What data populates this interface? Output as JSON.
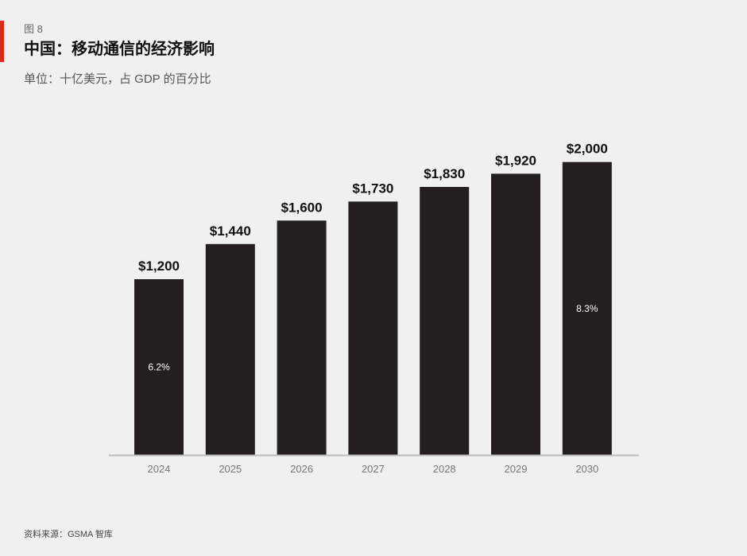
{
  "figure_label": "图 8",
  "title": "中国：移动通信的经济影响",
  "subtitle": "单位：十亿美元，占 GDP 的百分比",
  "source": "资料来源：GSMA 智库",
  "colors": {
    "accent": "#d52b1e",
    "bar": "#231f20",
    "background": "#f0f0f0"
  },
  "chart_data": {
    "type": "bar",
    "title": "中国：移动通信的经济影响",
    "subtitle": "单位：十亿美元，占 GDP 的百分比",
    "xlabel": "",
    "ylabel": "",
    "categories": [
      "2024",
      "2025",
      "2026",
      "2027",
      "2028",
      "2029",
      "2030"
    ],
    "values": [
      1200,
      1440,
      1600,
      1730,
      1830,
      1920,
      2000
    ],
    "value_labels": [
      "$1,200",
      "$1,440",
      "$1,600",
      "$1,730",
      "$1,830",
      "$1,920",
      "$2,000"
    ],
    "gdp_share_labels": [
      "6.2%",
      "",
      "",
      "",
      "",
      "",
      "8.3%"
    ],
    "ylim": [
      0,
      2400
    ],
    "grid": false,
    "legend": "none"
  }
}
